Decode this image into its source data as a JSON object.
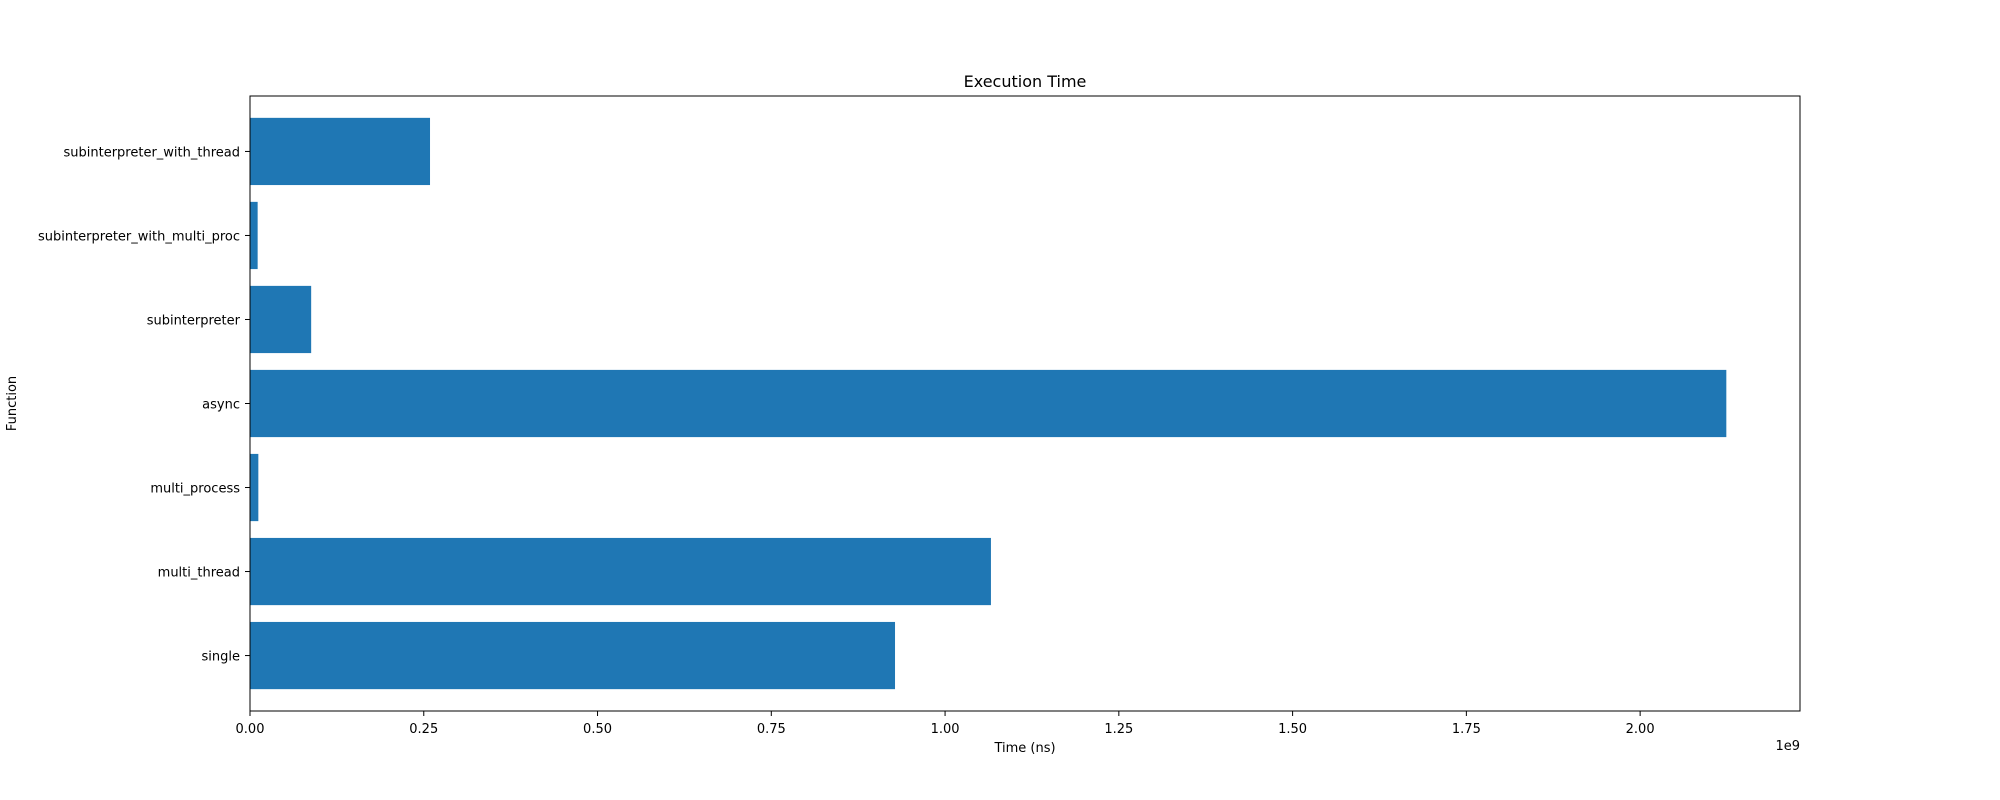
{
  "chart_data": {
    "type": "bar",
    "orientation": "horizontal",
    "title": "Execution Time",
    "xlabel": "Time (ns)",
    "ylabel": "Function",
    "x_offset_text": "1e9",
    "xlim": [
      0,
      2230000000
    ],
    "x_tick_scale": 1000000000,
    "x_ticks": [
      0,
      250000000,
      500000000,
      750000000,
      1000000000,
      1250000000,
      1500000000,
      1750000000,
      2000000000
    ],
    "x_tick_labels": [
      "0.00",
      "0.25",
      "0.50",
      "0.75",
      "1.00",
      "1.25",
      "1.50",
      "1.75",
      "2.00"
    ],
    "categories": [
      "single",
      "multi_thread",
      "multi_process",
      "async",
      "subinterpreter",
      "subinterpreter_with_multi_proc",
      "subinterpreter_with_thread"
    ],
    "values": [
      928000000,
      1066000000,
      12000000,
      2124000000,
      88000000,
      11000000,
      259000000
    ],
    "bar_color": "#1f77b4",
    "grid": false,
    "legend": "none"
  }
}
